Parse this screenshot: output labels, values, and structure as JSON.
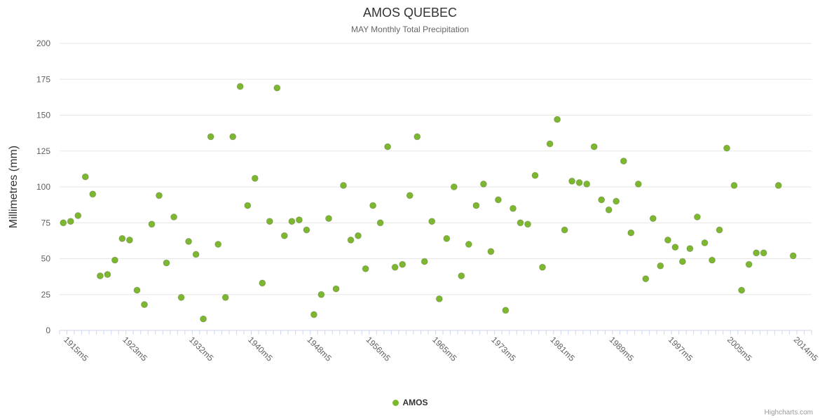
{
  "credits": "Highcharts.com",
  "chart_data": {
    "type": "scatter",
    "title": "AMOS QUEBEC",
    "subtitle": "MAY Monthly Total Precipitation",
    "xlabel": "",
    "ylabel": "Millimetres (mm)",
    "ylim": [
      0,
      200
    ],
    "yticks": [
      0,
      25,
      50,
      75,
      100,
      125,
      150,
      175,
      200
    ],
    "grid": true,
    "legend_position": "bottom",
    "x_start_year": 1915,
    "x_end_year": 2016,
    "x_tick_labels": [
      "1915m5",
      "1923m5",
      "1932m5",
      "1940m5",
      "1948m5",
      "1956m5",
      "1965m5",
      "1973m5",
      "1981m5",
      "1989m5",
      "1997m5",
      "2005m5",
      "2014m5"
    ],
    "colors": {
      "point": "#7db72f",
      "point_edge": "rgba(0,0,0,0.18)",
      "grid": "#e6e6e6",
      "axis_line": "#ccd6eb",
      "tick_label": "#606060",
      "axis_title": "#333333"
    },
    "series": [
      {
        "name": "AMOS",
        "color": "#7db72f",
        "data": [
          [
            1915,
            75
          ],
          [
            1916,
            76
          ],
          [
            1917,
            80
          ],
          [
            1918,
            107
          ],
          [
            1919,
            95
          ],
          [
            1920,
            38
          ],
          [
            1921,
            39
          ],
          [
            1922,
            49
          ],
          [
            1923,
            64
          ],
          [
            1924,
            63
          ],
          [
            1925,
            28
          ],
          [
            1926,
            18
          ],
          [
            1927,
            74
          ],
          [
            1928,
            94
          ],
          [
            1929,
            47
          ],
          [
            1930,
            79
          ],
          [
            1931,
            23
          ],
          [
            1932,
            62
          ],
          [
            1933,
            53
          ],
          [
            1934,
            8
          ],
          [
            1935,
            135
          ],
          [
            1936,
            60
          ],
          [
            1937,
            23
          ],
          [
            1938,
            135
          ],
          [
            1939,
            170
          ],
          [
            1940,
            87
          ],
          [
            1941,
            106
          ],
          [
            1942,
            33
          ],
          [
            1943,
            76
          ],
          [
            1944,
            169
          ],
          [
            1945,
            66
          ],
          [
            1946,
            76
          ],
          [
            1947,
            77
          ],
          [
            1948,
            70
          ],
          [
            1949,
            11
          ],
          [
            1950,
            25
          ],
          [
            1951,
            78
          ],
          [
            1952,
            29
          ],
          [
            1953,
            101
          ],
          [
            1954,
            63
          ],
          [
            1955,
            66
          ],
          [
            1956,
            43
          ],
          [
            1957,
            87
          ],
          [
            1958,
            75
          ],
          [
            1959,
            128
          ],
          [
            1960,
            44
          ],
          [
            1961,
            46
          ],
          [
            1962,
            94
          ],
          [
            1963,
            135
          ],
          [
            1964,
            48
          ],
          [
            1965,
            76
          ],
          [
            1966,
            22
          ],
          [
            1967,
            64
          ],
          [
            1968,
            100
          ],
          [
            1969,
            38
          ],
          [
            1970,
            60
          ],
          [
            1971,
            87
          ],
          [
            1972,
            102
          ],
          [
            1973,
            55
          ],
          [
            1974,
            91
          ],
          [
            1975,
            14
          ],
          [
            1976,
            85
          ],
          [
            1977,
            75
          ],
          [
            1978,
            74
          ],
          [
            1979,
            108
          ],
          [
            1980,
            44
          ],
          [
            1981,
            130
          ],
          [
            1982,
            147
          ],
          [
            1983,
            70
          ],
          [
            1984,
            104
          ],
          [
            1985,
            103
          ],
          [
            1986,
            102
          ],
          [
            1987,
            128
          ],
          [
            1988,
            91
          ],
          [
            1989,
            84
          ],
          [
            1990,
            90
          ],
          [
            1991,
            118
          ],
          [
            1992,
            68
          ],
          [
            1993,
            102
          ],
          [
            1994,
            36
          ],
          [
            1995,
            78
          ],
          [
            1996,
            45
          ],
          [
            1997,
            63
          ],
          [
            1998,
            58
          ],
          [
            1999,
            48
          ],
          [
            2000,
            57
          ],
          [
            2001,
            79
          ],
          [
            2002,
            61
          ],
          [
            2003,
            49
          ],
          [
            2004,
            70
          ],
          [
            2005,
            127
          ],
          [
            2006,
            101
          ],
          [
            2007,
            28
          ],
          [
            2008,
            46
          ],
          [
            2009,
            54
          ],
          [
            2010,
            54
          ],
          [
            2012,
            101
          ],
          [
            2014,
            52
          ]
        ]
      }
    ]
  }
}
